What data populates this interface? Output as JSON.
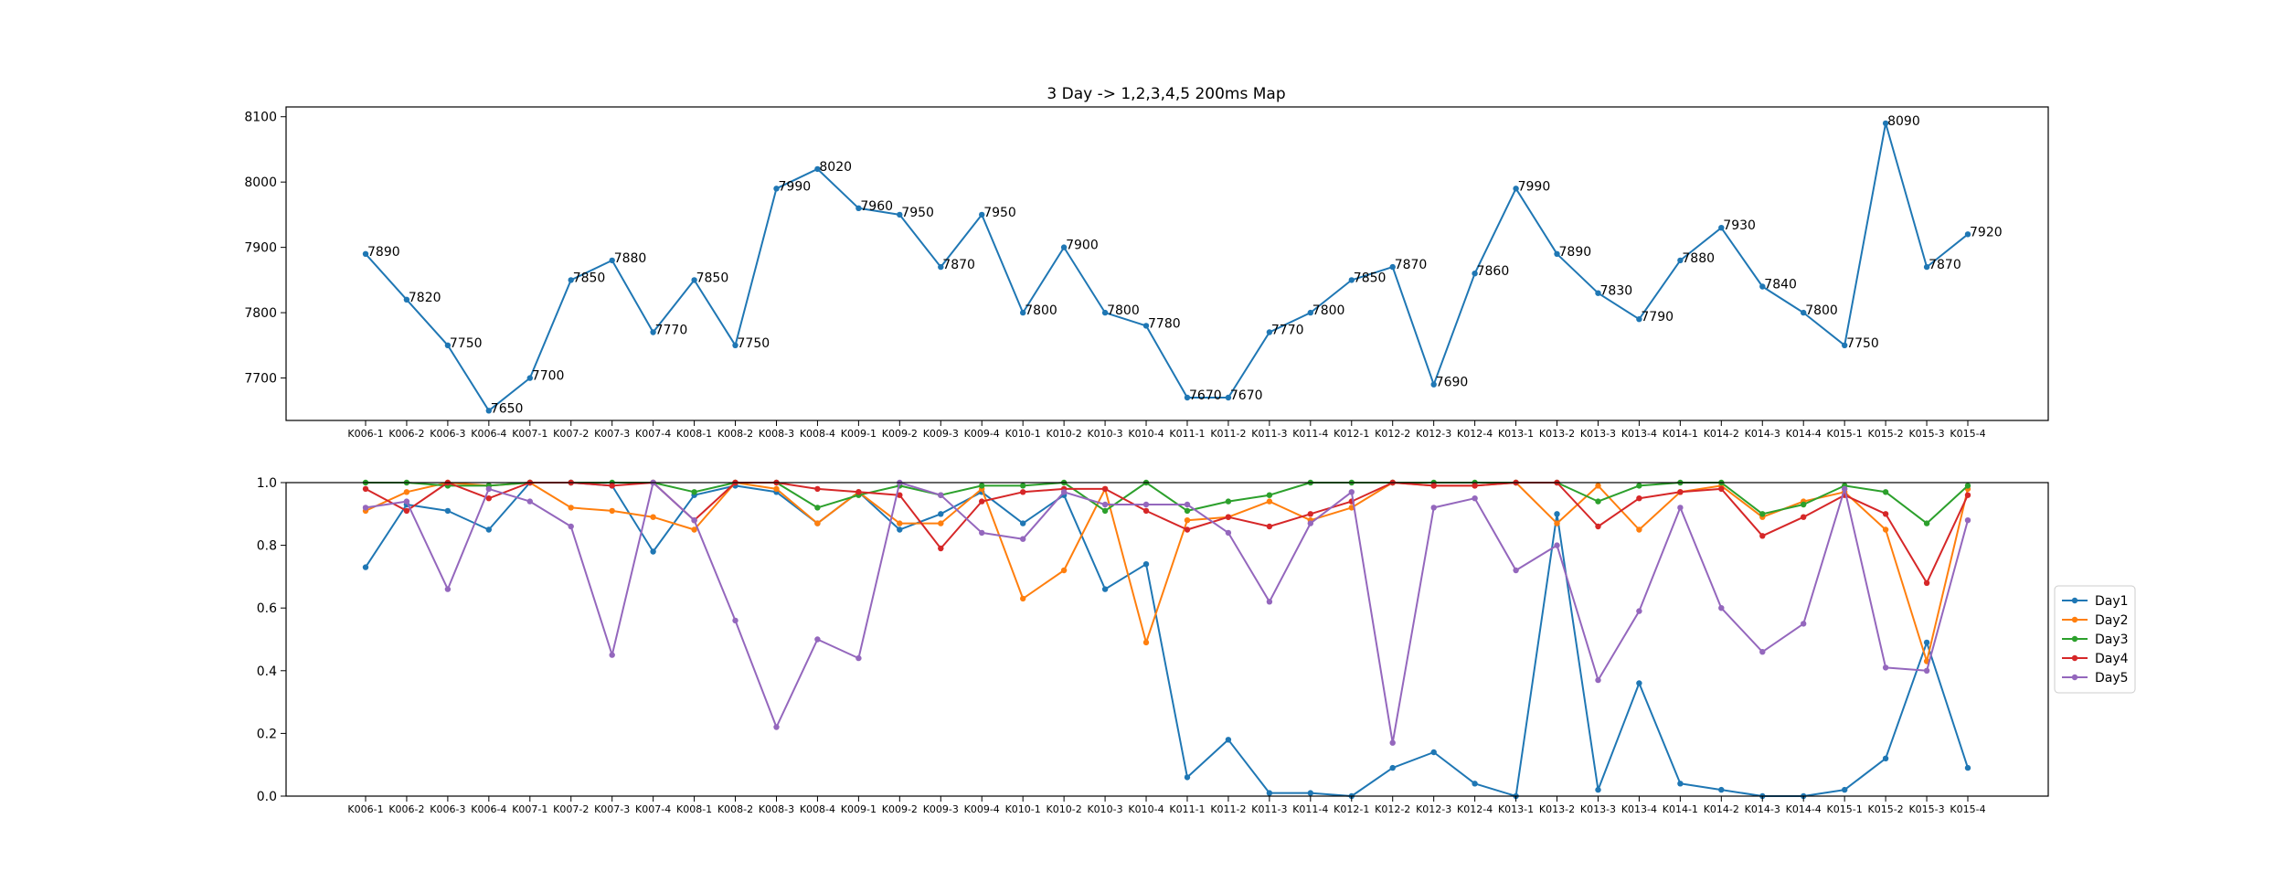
{
  "chart_data": [
    {
      "type": "line",
      "title": "3 Day -> 1,2,3,4,5 200ms Map",
      "xlabel": "",
      "ylabel": "",
      "categories": [
        "K006-1",
        "K006-2",
        "K006-3",
        "K006-4",
        "K007-1",
        "K007-2",
        "K007-3",
        "K007-4",
        "K008-1",
        "K008-2",
        "K008-3",
        "K008-4",
        "K009-1",
        "K009-2",
        "K009-3",
        "K009-4",
        "K010-1",
        "K010-2",
        "K010-3",
        "K010-4",
        "K011-1",
        "K011-2",
        "K011-3",
        "K011-4",
        "K012-1",
        "K012-2",
        "K012-3",
        "K012-4",
        "K013-1",
        "K013-2",
        "K013-3",
        "K013-4",
        "K014-1",
        "K014-2",
        "K014-3",
        "K014-4",
        "K015-1",
        "K015-2",
        "K015-3",
        "K015-4"
      ],
      "ylim": [
        7635,
        8115
      ],
      "yticks": [
        7700,
        7800,
        7900,
        8000,
        8100
      ],
      "grid": false,
      "color": "#1f77b4",
      "values": [
        7890,
        7820,
        7750,
        7650,
        7700,
        7850,
        7880,
        7770,
        7850,
        7750,
        7990,
        8020,
        7960,
        7950,
        7870,
        7950,
        7800,
        7900,
        7800,
        7780,
        7670,
        7670,
        7770,
        7800,
        7850,
        7870,
        7690,
        7860,
        7990,
        7890,
        7830,
        7790,
        7880,
        7930,
        7840,
        7800,
        7750,
        8090,
        7870,
        7920
      ],
      "data_labels": [
        "7890",
        "7820",
        "7750",
        "7650",
        "7700",
        "7850",
        "7880",
        "7770",
        "7850",
        "7750",
        "7990",
        "8020",
        "7960",
        "7950",
        "7870",
        "7950",
        "7800",
        "7900",
        "7800",
        "7780",
        "7670",
        "7670",
        "7770",
        "7800",
        "7850",
        "7870",
        "7690",
        "7860",
        "7990",
        "7890",
        "7830",
        "7790",
        "7880",
        "7930",
        "7840",
        "7800",
        "7750",
        "8090",
        "7870",
        "7920"
      ]
    },
    {
      "type": "line",
      "title": "",
      "xlabel": "",
      "ylabel": "",
      "categories": [
        "K006-1",
        "K006-2",
        "K006-3",
        "K006-4",
        "K007-1",
        "K007-2",
        "K007-3",
        "K007-4",
        "K008-1",
        "K008-2",
        "K008-3",
        "K008-4",
        "K009-1",
        "K009-2",
        "K009-3",
        "K009-4",
        "K010-1",
        "K010-2",
        "K010-3",
        "K010-4",
        "K011-1",
        "K011-2",
        "K011-3",
        "K011-4",
        "K012-1",
        "K012-2",
        "K012-3",
        "K012-4",
        "K013-1",
        "K013-2",
        "K013-3",
        "K013-4",
        "K014-1",
        "K014-2",
        "K014-3",
        "K014-4",
        "K015-1",
        "K015-2",
        "K015-3",
        "K015-4"
      ],
      "ylim": [
        0,
        1
      ],
      "yticks": [
        "0.0",
        "0.2",
        "0.4",
        "0.6",
        "0.8",
        "1.0"
      ],
      "grid": false,
      "legend_position": "right",
      "series": [
        {
          "name": "Day1",
          "color": "#1f77b4",
          "values": [
            0.73,
            0.93,
            0.91,
            0.85,
            1.0,
            1.0,
            0.99,
            0.78,
            0.96,
            0.99,
            0.97,
            0.87,
            0.97,
            0.85,
            0.9,
            0.97,
            0.87,
            0.96,
            0.66,
            0.74,
            0.06,
            0.18,
            0.01,
            0.01,
            0.0,
            0.09,
            0.14,
            0.04,
            0.0,
            0.9,
            0.02,
            0.36,
            0.04,
            0.02,
            0.0,
            0.0,
            0.02,
            0.12,
            0.49,
            0.09
          ]
        },
        {
          "name": "Day2",
          "color": "#ff7f0e",
          "values": [
            0.91,
            0.97,
            1.0,
            0.99,
            1.0,
            0.92,
            0.91,
            0.89,
            0.85,
            1.0,
            0.98,
            0.87,
            0.97,
            0.87,
            0.87,
            0.98,
            0.63,
            0.72,
            0.98,
            0.49,
            0.88,
            0.89,
            0.94,
            0.88,
            0.92,
            1.0,
            0.99,
            0.99,
            1.0,
            0.87,
            0.99,
            0.85,
            0.97,
            0.99,
            0.89,
            0.94,
            0.97,
            0.85,
            0.43,
            0.98
          ]
        },
        {
          "name": "Day3",
          "color": "#2ca02c",
          "values": [
            1.0,
            1.0,
            0.99,
            0.99,
            1.0,
            1.0,
            1.0,
            1.0,
            0.97,
            1.0,
            1.0,
            0.92,
            0.96,
            0.99,
            0.96,
            0.99,
            0.99,
            1.0,
            0.91,
            1.0,
            0.91,
            0.94,
            0.96,
            1.0,
            1.0,
            1.0,
            1.0,
            1.0,
            1.0,
            1.0,
            0.94,
            0.99,
            1.0,
            1.0,
            0.9,
            0.93,
            0.99,
            0.97,
            0.87,
            0.99
          ]
        },
        {
          "name": "Day4",
          "color": "#d62728",
          "values": [
            0.98,
            0.91,
            1.0,
            0.95,
            1.0,
            1.0,
            0.99,
            1.0,
            0.88,
            1.0,
            1.0,
            0.98,
            0.97,
            0.96,
            0.79,
            0.94,
            0.97,
            0.98,
            0.98,
            0.91,
            0.85,
            0.89,
            0.86,
            0.9,
            0.94,
            1.0,
            0.99,
            0.99,
            1.0,
            1.0,
            0.86,
            0.95,
            0.97,
            0.98,
            0.83,
            0.89,
            0.96,
            0.9,
            0.68,
            0.96
          ]
        },
        {
          "name": "Day5",
          "color": "#9467bd",
          "values": [
            0.92,
            0.94,
            0.66,
            0.98,
            0.94,
            0.86,
            0.45,
            1.0,
            0.88,
            0.56,
            0.22,
            0.5,
            0.44,
            1.0,
            0.96,
            0.84,
            0.82,
            0.97,
            0.93,
            0.93,
            0.93,
            0.84,
            0.62,
            0.87,
            0.97,
            0.17,
            0.92,
            0.95,
            0.72,
            0.8,
            0.37,
            0.59,
            0.92,
            0.6,
            0.46,
            0.55,
            0.98,
            0.41,
            0.4,
            0.88
          ]
        }
      ]
    }
  ]
}
